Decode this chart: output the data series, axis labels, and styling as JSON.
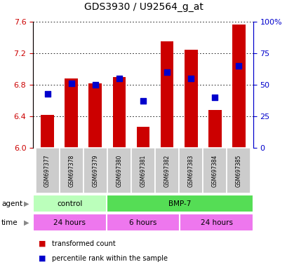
{
  "title": "GDS3930 / U92564_g_at",
  "samples": [
    "GSM697377",
    "GSM697378",
    "GSM697379",
    "GSM697380",
    "GSM697381",
    "GSM697382",
    "GSM697383",
    "GSM697384",
    "GSM697385"
  ],
  "red_values": [
    6.42,
    6.88,
    6.82,
    6.9,
    6.27,
    7.35,
    7.24,
    6.48,
    7.56
  ],
  "blue_values": [
    43,
    51,
    50,
    55,
    37,
    60,
    55,
    40,
    65
  ],
  "ylim_left": [
    6.0,
    7.6
  ],
  "ylim_right": [
    0,
    100
  ],
  "yticks_left": [
    6.0,
    6.4,
    6.8,
    7.2,
    7.6
  ],
  "yticks_right": [
    0,
    25,
    50,
    75,
    100
  ],
  "ytick_labels_right": [
    "0",
    "25",
    "50",
    "75",
    "100%"
  ],
  "agent_groups": [
    {
      "label": "control",
      "start": 0,
      "end": 3,
      "color": "#bbffbb"
    },
    {
      "label": "BMP-7",
      "start": 3,
      "end": 9,
      "color": "#55dd55"
    }
  ],
  "time_groups": [
    {
      "label": "24 hours",
      "start": 0,
      "end": 3,
      "color": "#ee77ee"
    },
    {
      "label": "6 hours",
      "start": 3,
      "end": 6,
      "color": "#ee77ee"
    },
    {
      "label": "24 hours",
      "start": 6,
      "end": 9,
      "color": "#ee77ee"
    }
  ],
  "bar_color": "#cc0000",
  "dot_color": "#0000cc",
  "bar_width": 0.55,
  "dot_size": 30,
  "grid_color": "#000000",
  "label_color_left": "#cc0000",
  "label_color_right": "#0000cc",
  "tick_bg_color": "#cccccc",
  "legend_items": [
    "transformed count",
    "percentile rank within the sample"
  ],
  "legend_colors": [
    "#cc0000",
    "#0000cc"
  ]
}
